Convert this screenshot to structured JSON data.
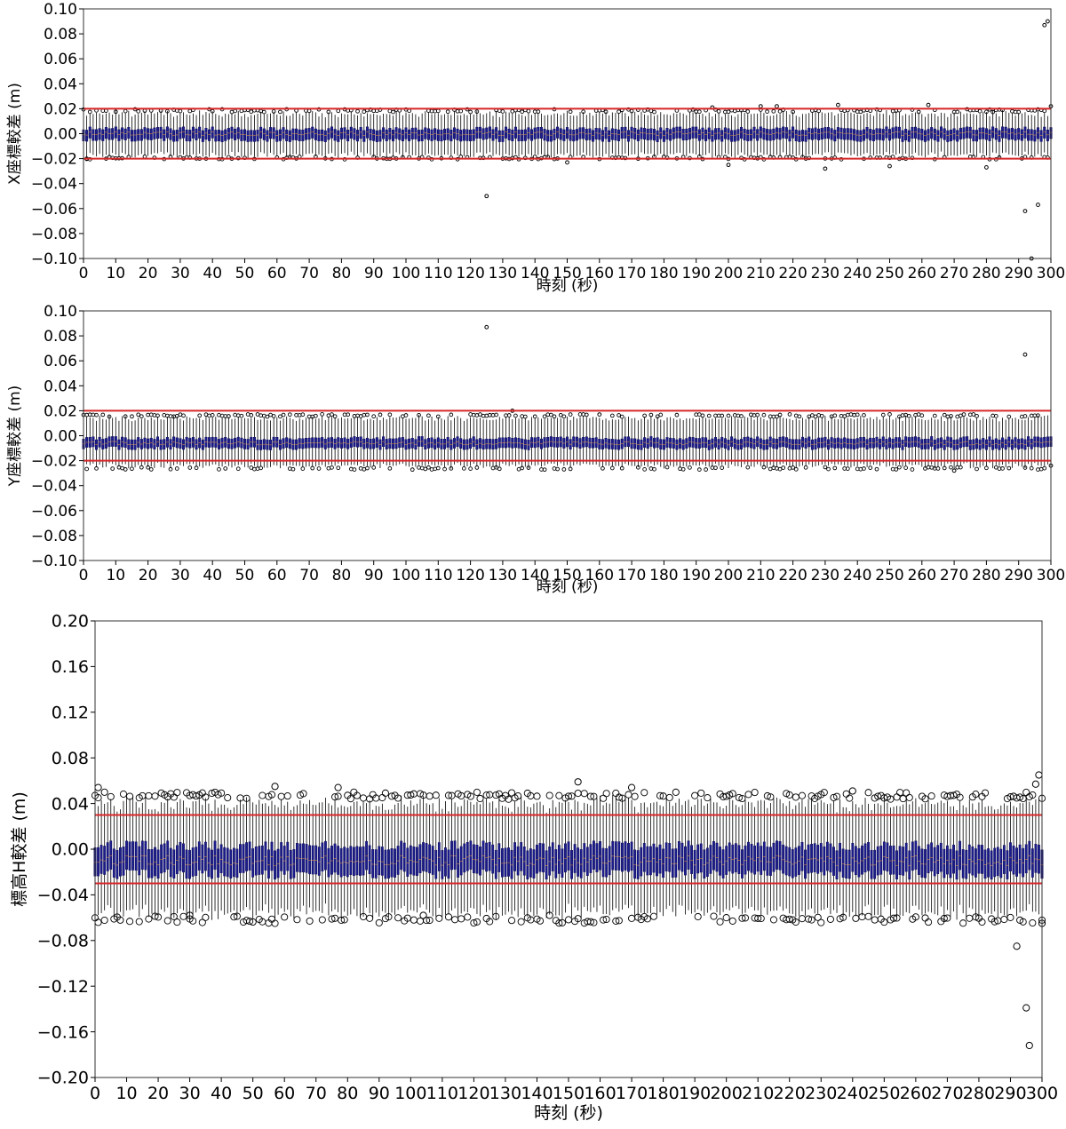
{
  "chart_data": [
    {
      "type": "box",
      "panel": "x",
      "xlabel": "時刻 (秒)",
      "ylabel": "X座標較差 (m)",
      "ylim": [
        -0.1,
        0.1
      ],
      "xlim": [
        0,
        300
      ],
      "yticks": [
        -0.1,
        -0.08,
        -0.06,
        -0.04,
        -0.02,
        0.0,
        0.02,
        0.04,
        0.06,
        0.08,
        0.1
      ],
      "ytick_labels": [
        "−0.10",
        "−0.08",
        "−0.06",
        "−0.04",
        "−0.02",
        "0.00",
        "0.02",
        "0.04",
        "0.06",
        "0.08",
        "0.10"
      ],
      "xticks": [
        0,
        10,
        20,
        30,
        40,
        50,
        60,
        70,
        80,
        90,
        100,
        110,
        120,
        130,
        140,
        150,
        160,
        170,
        180,
        190,
        200,
        210,
        220,
        230,
        240,
        250,
        260,
        270,
        280,
        290,
        300
      ],
      "xtick_labels": [
        "0",
        "10",
        "20",
        "30",
        "40",
        "50",
        "60",
        "70",
        "80",
        "90",
        "100",
        "110",
        "120",
        "130",
        "140",
        "150",
        "160",
        "170",
        "180",
        "190",
        "200",
        "210",
        "220",
        "230",
        "240",
        "250",
        "260",
        "270",
        "280",
        "290",
        "300"
      ],
      "reference_lines": [
        0.02,
        -0.02
      ],
      "box_typical": {
        "q1": -0.005,
        "median": 0.0,
        "q3": 0.004,
        "whisker_low": -0.017,
        "whisker_high": 0.016
      },
      "outliers": [
        {
          "x": 1,
          "y": -0.02
        },
        {
          "x": 125,
          "y": -0.05
        },
        {
          "x": 150,
          "y": -0.023
        },
        {
          "x": 195,
          "y": 0.021
        },
        {
          "x": 200,
          "y": -0.025
        },
        {
          "x": 210,
          "y": 0.022
        },
        {
          "x": 215,
          "y": 0.022
        },
        {
          "x": 230,
          "y": -0.028
        },
        {
          "x": 234,
          "y": 0.023
        },
        {
          "x": 250,
          "y": -0.026
        },
        {
          "x": 262,
          "y": 0.023
        },
        {
          "x": 280,
          "y": -0.027
        },
        {
          "x": 292,
          "y": -0.062
        },
        {
          "x": 296,
          "y": -0.057
        },
        {
          "x": 298,
          "y": 0.087
        },
        {
          "x": 299,
          "y": 0.09
        },
        {
          "x": 294,
          "y": -0.1
        },
        {
          "x": 300,
          "y": 0.022
        }
      ],
      "colors": {
        "box": "#1c1c8c",
        "box_edge": "#00004a",
        "whisker": "#000000",
        "reference": "#d62728",
        "outlier": "#000000"
      }
    },
    {
      "type": "box",
      "panel": "y",
      "xlabel": "時刻 (秒)",
      "ylabel": "Y座標較差 (m)",
      "ylim": [
        -0.1,
        0.1
      ],
      "xlim": [
        0,
        300
      ],
      "yticks": [
        -0.1,
        -0.08,
        -0.06,
        -0.04,
        -0.02,
        0.0,
        0.02,
        0.04,
        0.06,
        0.08,
        0.1
      ],
      "ytick_labels": [
        "−0.10",
        "−0.08",
        "−0.06",
        "−0.04",
        "−0.02",
        "0.00",
        "0.02",
        "0.04",
        "0.06",
        "0.08",
        "0.10"
      ],
      "xticks": [
        0,
        10,
        20,
        30,
        40,
        50,
        60,
        70,
        80,
        90,
        100,
        110,
        120,
        130,
        140,
        150,
        160,
        170,
        180,
        190,
        200,
        210,
        220,
        230,
        240,
        250,
        260,
        270,
        280,
        290,
        300
      ],
      "xtick_labels": [
        "0",
        "10",
        "20",
        "30",
        "40",
        "50",
        "60",
        "70",
        "80",
        "90",
        "100",
        "110",
        "120",
        "130",
        "140",
        "150",
        "160",
        "170",
        "180",
        "190",
        "200",
        "210",
        "220",
        "230",
        "240",
        "250",
        "260",
        "270",
        "280",
        "290",
        "300"
      ],
      "reference_lines": [
        0.02,
        -0.02
      ],
      "box_typical": {
        "q1": -0.01,
        "median": -0.006,
        "q3": -0.002,
        "whisker_low": -0.024,
        "whisker_high": 0.014
      },
      "outliers": [
        {
          "x": 125,
          "y": 0.087
        },
        {
          "x": 292,
          "y": 0.065
        },
        {
          "x": 133,
          "y": 0.02
        },
        {
          "x": 160,
          "y": 0.017
        },
        {
          "x": 270,
          "y": -0.028
        },
        {
          "x": 300,
          "y": -0.024
        }
      ],
      "colors": {
        "box": "#1c1c8c",
        "box_edge": "#00004a",
        "whisker": "#000000",
        "reference": "#d62728",
        "outlier": "#000000"
      }
    },
    {
      "type": "box",
      "panel": "h",
      "xlabel": "時刻 (秒)",
      "ylabel": "標高H較差 (m)",
      "ylim": [
        -0.2,
        0.2
      ],
      "xlim": [
        0,
        300
      ],
      "yticks": [
        -0.2,
        -0.16,
        -0.12,
        -0.08,
        -0.04,
        0.0,
        0.04,
        0.08,
        0.12,
        0.16,
        0.2
      ],
      "ytick_labels": [
        "−0.20",
        "−0.16",
        "−0.12",
        "−0.08",
        "−0.04",
        "0.00",
        "0.04",
        "0.08",
        "0.12",
        "0.16",
        "0.20"
      ],
      "xticks": [
        0,
        10,
        20,
        30,
        40,
        50,
        60,
        70,
        80,
        90,
        100,
        110,
        120,
        130,
        140,
        150,
        160,
        170,
        180,
        190,
        200,
        210,
        220,
        230,
        240,
        250,
        260,
        270,
        280,
        290,
        300
      ],
      "xtick_labels": [
        "0",
        "10",
        "20",
        "30",
        "40",
        "50",
        "60",
        "70",
        "80",
        "90",
        "100",
        "110",
        "120",
        "130",
        "140",
        "150",
        "160",
        "170",
        "180",
        "190",
        "200",
        "210",
        "220",
        "230",
        "240",
        "250",
        "260",
        "270",
        "280",
        "290",
        "300"
      ],
      "reference_lines": [
        0.03,
        -0.03
      ],
      "box_typical": {
        "q1": -0.022,
        "median": -0.01,
        "q3": 0.003,
        "whisker_low": -0.055,
        "whisker_high": 0.04
      },
      "outliers": [
        {
          "x": 1,
          "y": 0.054
        },
        {
          "x": 57,
          "y": 0.055
        },
        {
          "x": 77,
          "y": 0.054
        },
        {
          "x": 153,
          "y": 0.059
        },
        {
          "x": 170,
          "y": 0.054
        },
        {
          "x": 240,
          "y": 0.051
        },
        {
          "x": 30,
          "y": -0.058
        },
        {
          "x": 104,
          "y": -0.058
        },
        {
          "x": 144,
          "y": -0.058
        },
        {
          "x": 292,
          "y": -0.085
        },
        {
          "x": 295,
          "y": -0.139
        },
        {
          "x": 296,
          "y": -0.172
        },
        {
          "x": 298,
          "y": 0.057
        },
        {
          "x": 299,
          "y": 0.065
        },
        {
          "x": 300,
          "y": -0.065
        }
      ],
      "colors": {
        "box": "#1c1c8c",
        "box_edge": "#00004a",
        "whisker": "#000000",
        "reference": "#d62728",
        "outlier": "#000000"
      }
    }
  ]
}
